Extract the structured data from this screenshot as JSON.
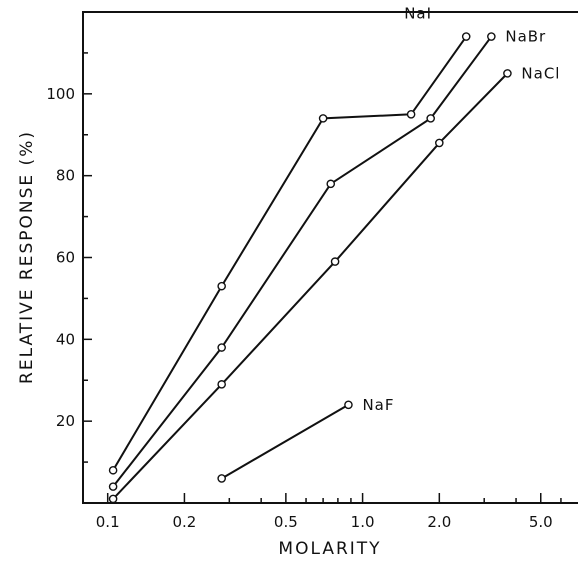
{
  "chart_data": {
    "type": "line",
    "xlabel": "MOLARITY",
    "ylabel": "RELATIVE RESPONSE (%)",
    "x_scale": "log",
    "xlim": [
      0.08,
      7.0
    ],
    "ylim": [
      0,
      120
    ],
    "x_ticks": [
      {
        "value": 0.1,
        "label": "0.1"
      },
      {
        "value": 0.2,
        "label": "0.2"
      },
      {
        "value": 0.5,
        "label": "0.5"
      },
      {
        "value": 1.0,
        "label": "1.0"
      },
      {
        "value": 2.0,
        "label": "2.0"
      },
      {
        "value": 5.0,
        "label": "5.0"
      }
    ],
    "y_ticks": [
      {
        "value": 20,
        "label": "20"
      },
      {
        "value": 40,
        "label": "40"
      },
      {
        "value": 60,
        "label": "60"
      },
      {
        "value": 80,
        "label": "80"
      },
      {
        "value": 100,
        "label": "100"
      }
    ],
    "series": [
      {
        "name": "NaI",
        "x": [
          0.105,
          0.28,
          0.7,
          1.55,
          2.55
        ],
        "y": [
          8,
          53,
          94,
          95,
          114
        ]
      },
      {
        "name": "NaBr",
        "x": [
          0.105,
          0.28,
          0.75,
          1.85,
          3.2
        ],
        "y": [
          4,
          38,
          78,
          94,
          114
        ]
      },
      {
        "name": "NaCl",
        "x": [
          0.105,
          0.28,
          0.78,
          2.0,
          3.7
        ],
        "y": [
          1,
          29,
          59,
          88,
          105
        ]
      },
      {
        "name": "NaF",
        "x": [
          0.28,
          0.88
        ],
        "y": [
          6,
          24
        ]
      }
    ],
    "legend": "inline labels at line ends",
    "grid": false
  }
}
